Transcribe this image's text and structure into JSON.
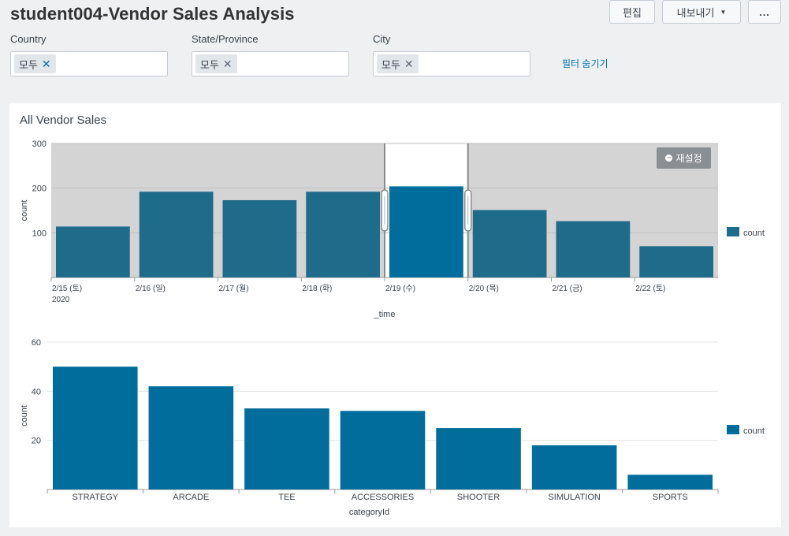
{
  "dashboard": {
    "title": "student004-Vendor Sales Analysis",
    "edit_label": "편집",
    "export_label": "내보내기",
    "more_label": "..."
  },
  "filters": {
    "country": {
      "label": "Country",
      "token": "모두"
    },
    "state": {
      "label": "State/Province",
      "token": "모두"
    },
    "city": {
      "label": "City",
      "token": "모두"
    },
    "hide_label": "필터 숨기기"
  },
  "panel": {
    "title": "All Vendor Sales",
    "reset_label": "재설정"
  },
  "colors": {
    "bar": "#1f6b8a",
    "bar_selected": "#006d9c",
    "unselected_bg": "#d4d4d4"
  },
  "chart_data": [
    {
      "type": "bar",
      "categories": [
        "2/15 (토)",
        "2/16 (일)",
        "2/17 (월)",
        "2/18 (화)",
        "2/19 (수)",
        "2/20 (목)",
        "2/21 (금)",
        "2/22 (토)"
      ],
      "x_sublabel": "2020",
      "series": [
        {
          "name": "count",
          "values": [
            114,
            192,
            173,
            192,
            204,
            151,
            126,
            70
          ]
        }
      ],
      "selected_category": "2/19 (수)",
      "xlabel": "_time",
      "ylabel": "count",
      "ylim": [
        0,
        300
      ],
      "yticks": [
        100,
        200,
        300
      ],
      "grid": true,
      "legend": "right"
    },
    {
      "type": "bar",
      "categories": [
        "STRATEGY",
        "ARCADE",
        "TEE",
        "ACCESSORIES",
        "SHOOTER",
        "SIMULATION",
        "SPORTS"
      ],
      "series": [
        {
          "name": "count",
          "values": [
            50,
            42,
            33,
            32,
            25,
            18,
            6
          ]
        }
      ],
      "xlabel": "categoryId",
      "ylabel": "count",
      "ylim": [
        0,
        60
      ],
      "yticks": [
        20,
        40,
        60
      ],
      "grid": true,
      "legend": "right"
    }
  ]
}
